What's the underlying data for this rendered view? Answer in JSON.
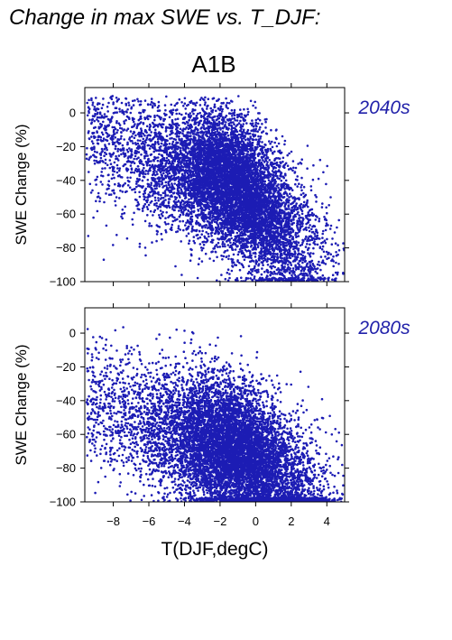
{
  "figure": {
    "title": "Change in max SWE vs. T_DJF:",
    "subtitle": "A1B",
    "xlabel": "T(DJF,degC)"
  },
  "colors": {
    "points": "#1c1cb4",
    "period_label": "#2222aa",
    "axes": "#000000"
  },
  "chart_data": [
    {
      "type": "scatter",
      "period": "2040s",
      "xlabel": "T(DJF,degC)",
      "ylabel": "SWE Change (%)",
      "xlim": [
        -9.6,
        5.0
      ],
      "ylim": [
        -100,
        15
      ],
      "xticks": [
        -8,
        -6,
        -4,
        -2,
        0,
        2,
        4
      ],
      "yticks": [
        0,
        -20,
        -40,
        -60,
        -80,
        -100
      ],
      "x_tick_labels_shown": false,
      "point_cloud": {
        "count": 9000,
        "x_range": [
          -9.5,
          5.0
        ],
        "y_range": [
          -100,
          10
        ],
        "trend_samples": [
          {
            "x": -9.0,
            "y": -10
          },
          {
            "x": -6.0,
            "y": -28
          },
          {
            "x": -4.0,
            "y": -32
          },
          {
            "x": -2.0,
            "y": -38
          },
          {
            "x": 0.0,
            "y": -52
          },
          {
            "x": 2.0,
            "y": -72
          },
          {
            "x": 4.0,
            "y": -85
          }
        ]
      }
    },
    {
      "type": "scatter",
      "period": "2080s",
      "xlabel": "T(DJF,degC)",
      "ylabel": "SWE Change (%)",
      "xlim": [
        -9.6,
        5.0
      ],
      "ylim": [
        -100,
        15
      ],
      "xticks": [
        -8,
        -6,
        -4,
        -2,
        0,
        2,
        4
      ],
      "yticks": [
        0,
        -20,
        -40,
        -60,
        -80,
        -100
      ],
      "x_tick_labels_shown": true,
      "point_cloud": {
        "count": 9000,
        "x_range": [
          -9.5,
          5.0
        ],
        "y_range": [
          -100,
          5
        ],
        "trend_samples": [
          {
            "x": -9.0,
            "y": -40
          },
          {
            "x": -6.0,
            "y": -55
          },
          {
            "x": -4.0,
            "y": -60
          },
          {
            "x": -2.0,
            "y": -65
          },
          {
            "x": 0.0,
            "y": -75
          },
          {
            "x": 2.0,
            "y": -87
          },
          {
            "x": 4.0,
            "y": -95
          }
        ]
      }
    }
  ]
}
